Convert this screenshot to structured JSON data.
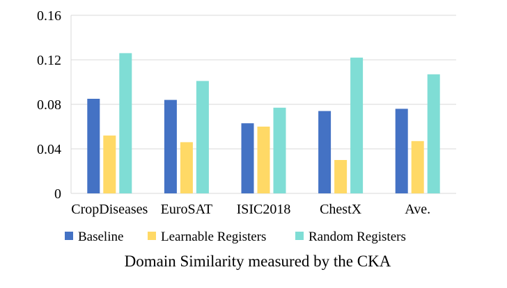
{
  "chart_data": {
    "type": "bar",
    "title": "Domain Similarity measured by the CKA",
    "xlabel": "",
    "ylabel": "",
    "categories": [
      "CropDiseases",
      "EuroSAT",
      "ISIC2018",
      "ChestX",
      "Ave."
    ],
    "series": [
      {
        "name": "Baseline",
        "color": "#4472c4",
        "values": [
          0.085,
          0.084,
          0.063,
          0.074,
          0.076
        ]
      },
      {
        "name": "Learnable Registers",
        "color": "#ffd966",
        "values": [
          0.052,
          0.046,
          0.06,
          0.03,
          0.047
        ]
      },
      {
        "name": "Random Registers",
        "color": "#7fddd5",
        "values": [
          0.126,
          0.101,
          0.077,
          0.122,
          0.107
        ]
      }
    ],
    "ylim": [
      0,
      0.16
    ],
    "yticks": [
      "0",
      "0.04",
      "0.08",
      "0.12",
      "0.16"
    ],
    "grid": true,
    "legend": "bottom"
  }
}
